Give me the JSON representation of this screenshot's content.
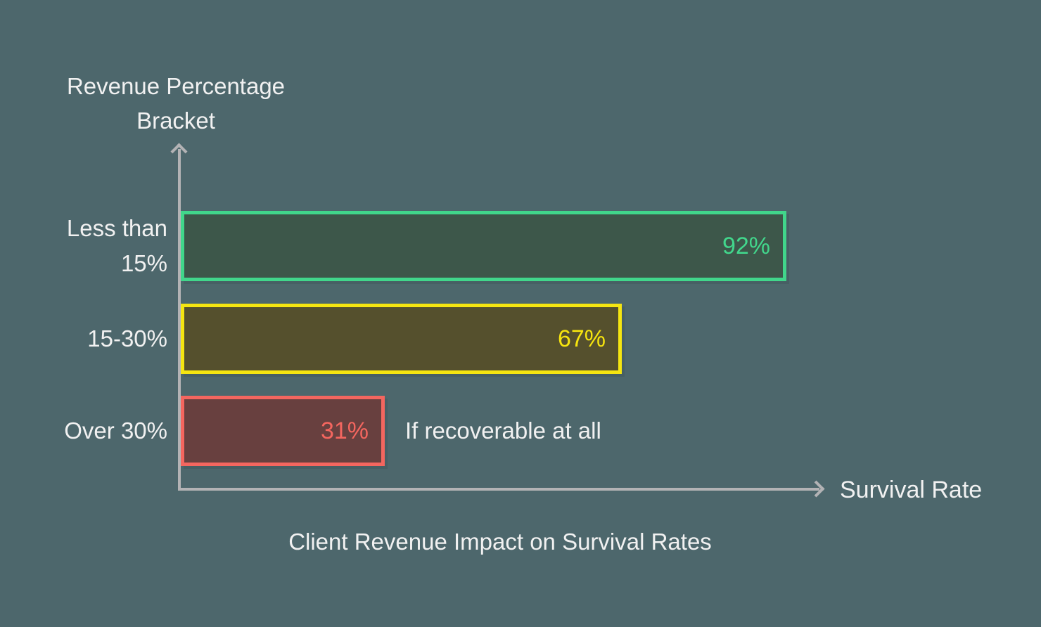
{
  "colors": {
    "background": "#4d676c",
    "text": "#f1f1f1",
    "axis": "#b3b3b5"
  },
  "chart_data": {
    "type": "bar",
    "orientation": "horizontal",
    "title": "Client Revenue Impact on Survival Rates",
    "xlabel": "Survival Rate",
    "ylabel": "Revenue Percentage Bracket",
    "xlim": [
      0,
      100
    ],
    "grid": false,
    "legend": false,
    "value_label_position": "inside-end",
    "categories": [
      "Less than 15%",
      "15-30%",
      "Over 30%"
    ],
    "values": [
      92,
      67,
      31
    ],
    "annotation": "If recoverable at all",
    "annotation_target": "Over 30%",
    "bars": [
      {
        "label": "Less than 15%",
        "value": 92,
        "value_label": "92%",
        "fill": "#3d574a",
        "border": "#41d68b",
        "value_color": "#42d78c"
      },
      {
        "label": "15-30%",
        "value": 67,
        "value_label": "67%",
        "fill": "#55502d",
        "border": "#f5e511",
        "value_color": "#f6e40e"
      },
      {
        "label": "Over 30%",
        "value": 31,
        "value_label": "31%",
        "fill": "#68403f",
        "border": "#f4665f",
        "value_color": "#f4665f"
      }
    ]
  }
}
